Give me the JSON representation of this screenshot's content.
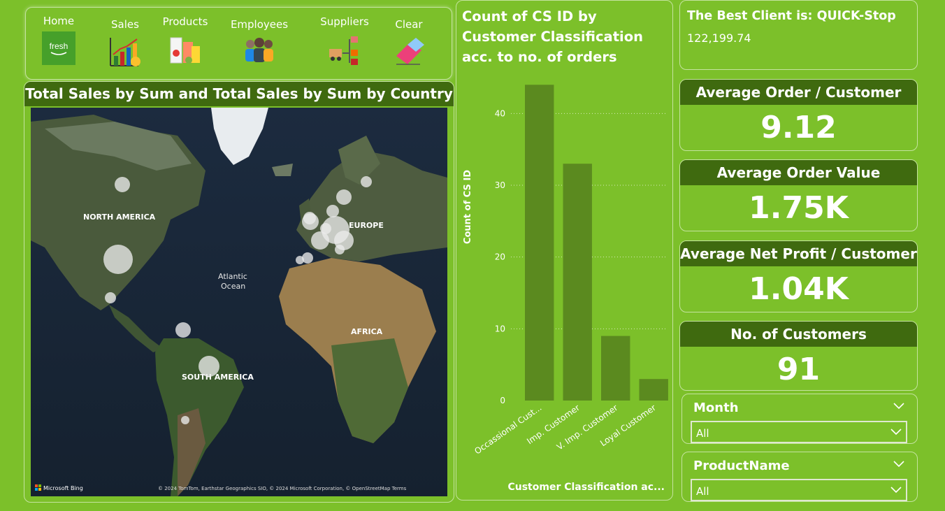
{
  "nav": {
    "home": "Home",
    "sales": "Sales",
    "products": "Products",
    "employees": "Employees",
    "suppliers": "Suppliers",
    "clear": "Clear",
    "home_logo_text": "fresh"
  },
  "map": {
    "title": "Total Sales by Sum and Total Sales by Sum by Country",
    "labels": {
      "north_america": "NORTH AMERICA",
      "europe": "EUROPE",
      "atlantic": "Atlantic",
      "ocean": "Ocean",
      "africa": "AFRICA",
      "south_america": "SOUTH AMERICA"
    },
    "attribution_brand": "Microsoft Bing",
    "attribution_text": "© 2024 TomTom, Earthstar Geographics SIO, © 2024 Microsoft Corporation, © OpenStreetMap  Terms"
  },
  "chart_data": {
    "type": "bar",
    "title": "Count of CS ID by Customer Classification acc. to no. of orders",
    "xlabel": "Customer Classification ac...",
    "ylabel": "Count of CS ID",
    "categories": [
      "Occassional Cust...",
      "Imp. Customer",
      "V. Imp. Customer",
      "Loyal Customer"
    ],
    "values": [
      44,
      33,
      9,
      3
    ],
    "yticks": [
      0,
      10,
      20,
      30,
      40
    ],
    "ylim": [
      0,
      45
    ],
    "color": "#5b8a1f",
    "grid": "dotted"
  },
  "best_client": {
    "label": "The Best Client is: QUICK-Stop",
    "value": "122,199.74"
  },
  "kpis": [
    {
      "title": "Average Order / Customer",
      "value": "9.12"
    },
    {
      "title": "Average Order Value",
      "value": "1.75K"
    },
    {
      "title": "Average Net Profit / Customer",
      "value": "1.04K"
    },
    {
      "title": "No. of Customers",
      "value": "91"
    }
  ],
  "slicers": [
    {
      "title": "Month",
      "value": "All"
    },
    {
      "title": "ProductName",
      "value": "All"
    }
  ],
  "colors": {
    "background": "#7cc02a",
    "header_dark": "#3f6a0f",
    "bar": "#5b8a1f"
  }
}
